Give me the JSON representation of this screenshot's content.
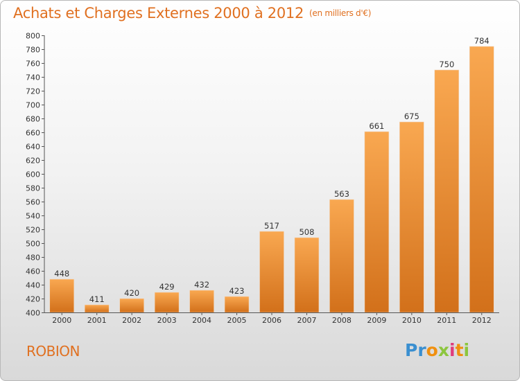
{
  "header": {
    "title": "Achats et Charges Externes 2000 à 2012",
    "unit": "(en milliers d'€)"
  },
  "footer": {
    "place": "ROBION",
    "logo": [
      "Pr",
      "o",
      "x",
      "i",
      "t",
      "i"
    ]
  },
  "colors": {
    "accent": "#e07020",
    "bar_light": "#f7a452",
    "bar_dark": "#d06a14"
  },
  "chart_data": {
    "type": "bar",
    "title": "Achats et Charges Externes 2000 à 2012",
    "subtitle": "(en milliers d'€)",
    "categories": [
      "2000",
      "2001",
      "2002",
      "2003",
      "2004",
      "2005",
      "2006",
      "2007",
      "2008",
      "2009",
      "2010",
      "2011",
      "2012"
    ],
    "values": [
      448,
      411,
      420,
      429,
      432,
      423,
      517,
      508,
      563,
      661,
      675,
      750,
      784
    ],
    "ylim": [
      400,
      800
    ],
    "yticks": [
      400,
      420,
      440,
      460,
      480,
      500,
      520,
      540,
      560,
      580,
      600,
      620,
      640,
      660,
      680,
      700,
      720,
      740,
      760,
      780,
      800
    ],
    "grid": false,
    "legend": "none"
  }
}
